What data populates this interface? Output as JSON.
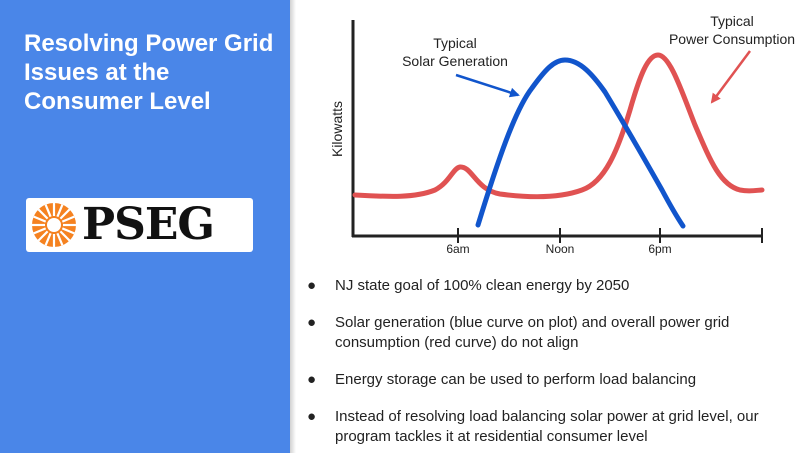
{
  "slide": {
    "title": "Resolving Power Grid Issues at the Consumer Level",
    "logo_text": "PSEG",
    "bullets": [
      "NJ state goal of 100% clean energy by 2050",
      "Solar generation (blue curve on plot)  and overall power grid consumption (red curve) do not align",
      "Energy storage can be used to perform load balancing",
      "Instead of resolving load balancing solar power at grid level, our program tackles it at residential consumer level"
    ],
    "bullet_glyph": "●"
  },
  "colors": {
    "panel": "#4a86e8",
    "solar": "#1155cc",
    "consumption": "#e05252"
  },
  "chart_data": {
    "type": "line",
    "ylabel": "Kilowatts",
    "xlabel": "",
    "x_ticks": [
      "6am",
      "Noon",
      "6pm"
    ],
    "annotations": [
      {
        "lines": [
          "Typical",
          "Solar Generation"
        ],
        "series": "solar"
      },
      {
        "lines": [
          "Typical",
          "Power Consumption"
        ],
        "series": "consumption"
      }
    ],
    "series": [
      {
        "key": "solar",
        "color": "#1155cc",
        "hours": [
          7,
          12,
          18
        ],
        "shape": "bell",
        "peak_hour": 12
      },
      {
        "key": "consumption",
        "color": "#e05252",
        "shape": "two-peak",
        "morning_peak_hour": 6,
        "evening_peak_hour": 18
      }
    ]
  }
}
